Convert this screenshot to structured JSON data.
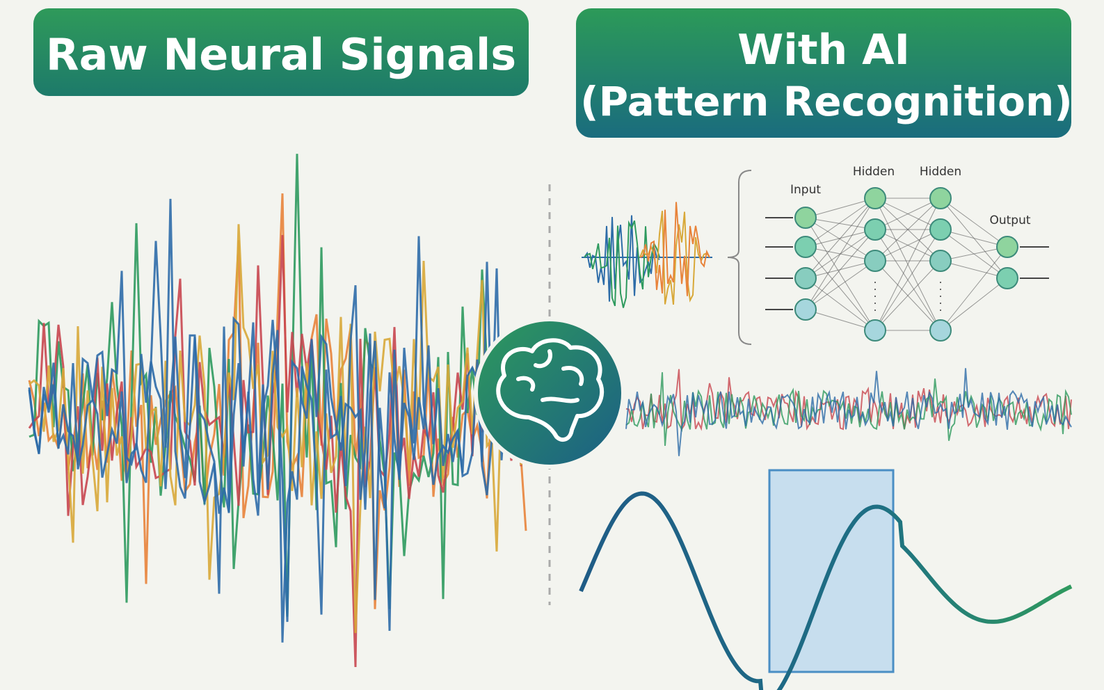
{
  "left_panel": {
    "title": "Raw Neural Signals"
  },
  "right_panel": {
    "title": "With AI",
    "subtitle": "(Pattern Recognition)"
  },
  "network": {
    "input_label": "Input",
    "hidden_labels": [
      "Hidden",
      "Hidden"
    ],
    "output_label": "Output"
  }
}
